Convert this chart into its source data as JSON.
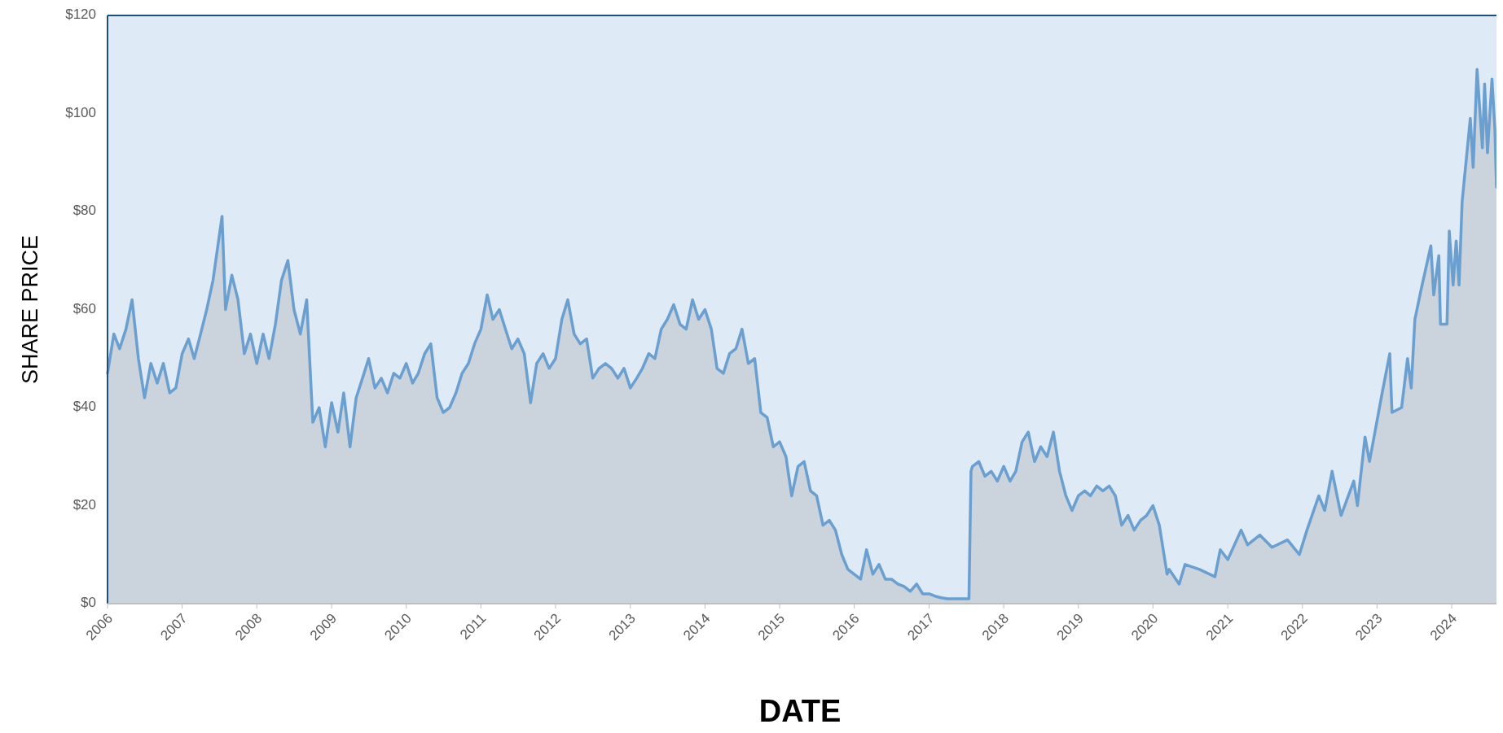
{
  "chart_data": {
    "type": "area",
    "xlabel": "DATE",
    "ylabel": "SHARE PRICE",
    "xlim": [
      "2006-01-01",
      "2024-08-07"
    ],
    "xticks": [
      "2006",
      "2007",
      "2008",
      "2009",
      "2010",
      "2011",
      "2012",
      "2013",
      "2014",
      "2015",
      "2016",
      "2017",
      "2018",
      "2019",
      "2020",
      "2021",
      "2022",
      "2023",
      "2024"
    ],
    "ylim": [
      0,
      120
    ],
    "yticks": [
      {
        "value": 0,
        "label": "$0"
      },
      {
        "value": 20,
        "label": "$20"
      },
      {
        "value": 40,
        "label": "$40"
      },
      {
        "value": 60,
        "label": "$60"
      },
      {
        "value": 80,
        "label": "$80"
      },
      {
        "value": 100,
        "label": "$100"
      },
      {
        "value": 120,
        "label": "$120"
      }
    ],
    "x": [
      "2006-01-01",
      "2006-02",
      "2006-03",
      "2006-04",
      "2006-05",
      "2006-06",
      "2006-07",
      "2006-08",
      "2006-09",
      "2006-10",
      "2006-11",
      "2006-12",
      "2007-01",
      "2007-02",
      "2007-03",
      "2007-04",
      "2007-05",
      "2007-06",
      "2007-07-15",
      "2007-08",
      "2007-09",
      "2007-10",
      "2007-11",
      "2007-12",
      "2008-01",
      "2008-02",
      "2008-03",
      "2008-04",
      "2008-05",
      "2008-06",
      "2008-07",
      "2008-08",
      "2008-09",
      "2008-10",
      "2008-11",
      "2008-12",
      "2009-01",
      "2009-02",
      "2009-03",
      "2009-04",
      "2009-05",
      "2009-06",
      "2009-07",
      "2009-08",
      "2009-09",
      "2009-10",
      "2009-11",
      "2009-12",
      "2010-01",
      "2010-02",
      "2010-03",
      "2010-04",
      "2010-05",
      "2010-06",
      "2010-07",
      "2010-08",
      "2010-09",
      "2010-10",
      "2010-11",
      "2010-12",
      "2011-01",
      "2011-02",
      "2011-03",
      "2011-04",
      "2011-05",
      "2011-06",
      "2011-07",
      "2011-08",
      "2011-09",
      "2011-10",
      "2011-11",
      "2011-12",
      "2012-01",
      "2012-02",
      "2012-03",
      "2012-04",
      "2012-05",
      "2012-06",
      "2012-07",
      "2012-08",
      "2012-09",
      "2012-10",
      "2012-11",
      "2012-12",
      "2013-01",
      "2013-02",
      "2013-03",
      "2013-04",
      "2013-05",
      "2013-06",
      "2013-07",
      "2013-08",
      "2013-09",
      "2013-10",
      "2013-11",
      "2013-12",
      "2014-01",
      "2014-02",
      "2014-03",
      "2014-04",
      "2014-05",
      "2014-06",
      "2014-07",
      "2014-08",
      "2014-09",
      "2014-10",
      "2014-11",
      "2014-12",
      "2015-01",
      "2015-02",
      "2015-03",
      "2015-04",
      "2015-05",
      "2015-06",
      "2015-07",
      "2015-08",
      "2015-09",
      "2015-10",
      "2015-11",
      "2015-12",
      "2016-01",
      "2016-02",
      "2016-03",
      "2016-04",
      "2016-05",
      "2016-06",
      "2016-07",
      "2016-08",
      "2016-09",
      "2016-10",
      "2016-11",
      "2016-12",
      "2017-01",
      "2017-02",
      "2017-03",
      "2017-04",
      "2017-05",
      "2017-06",
      "2017-07-15",
      "2017-07-25",
      "2017-08",
      "2017-09",
      "2017-10",
      "2017-11",
      "2017-12",
      "2018-01",
      "2018-02",
      "2018-03",
      "2018-04",
      "2018-05",
      "2018-06",
      "2018-07",
      "2018-08",
      "2018-09",
      "2018-10",
      "2018-11",
      "2018-12",
      "2019-01",
      "2019-02",
      "2019-03",
      "2019-04",
      "2019-05",
      "2019-06",
      "2019-07",
      "2019-08",
      "2019-09",
      "2019-10",
      "2019-11",
      "2019-12",
      "2020-01",
      "2020-02",
      "2020-03-10",
      "2020-03-20",
      "2020-05-08",
      "2020-06-06",
      "2020-08-15",
      "2020-10-30",
      "2020-11-25",
      "2021-01-01",
      "2021-03-07",
      "2021-04-08",
      "2021-06-07",
      "2021-08-05",
      "2021-10-20",
      "2021-12-17",
      "2022-01-23",
      "2022-03-22",
      "2022-04-20",
      "2022-05-26",
      "2022-07-09",
      "2022-09-09",
      "2022-09-27",
      "2022-11-03",
      "2022-11-25",
      "2023-01-26",
      "2023-03-04",
      "2023-03-15",
      "2023-05-01",
      "2023-05-30",
      "2023-06-17",
      "2023-07-05",
      "2023-08-04",
      "2023-09-21",
      "2023-10-05",
      "2023-10-30",
      "2023-11-07",
      "2023-12-09",
      "2023-12-20",
      "2024-01-08",
      "2024-01-23",
      "2024-02-06",
      "2024-02-21",
      "2024-04-01",
      "2024-04-15",
      "2024-05-04",
      "2024-05-30",
      "2024-06-10",
      "2024-06-24",
      "2024-07-16",
      "2024-07-30",
      "2024-08-07"
    ],
    "series": [
      {
        "color": "#6a9fd0",
        "values": [
          47,
          55,
          52,
          56,
          62,
          50,
          42,
          49,
          45,
          49,
          43,
          44,
          51,
          54,
          50,
          55,
          60,
          66,
          79,
          60,
          67,
          62,
          51,
          55,
          49,
          55,
          50,
          57,
          66,
          70,
          60,
          55,
          62,
          37,
          40,
          32,
          41,
          35,
          43,
          32,
          42,
          46,
          50,
          44,
          46,
          43,
          47,
          46,
          49,
          45,
          47,
          51,
          53,
          42,
          39,
          40,
          43,
          47,
          49,
          53,
          56,
          63,
          58,
          60,
          56,
          52,
          54,
          51,
          41,
          49,
          51,
          48,
          50,
          58,
          62,
          55,
          53,
          54,
          46,
          48,
          49,
          48,
          46,
          48,
          44,
          46,
          48,
          51,
          50,
          56,
          58,
          61,
          57,
          56,
          62,
          58,
          60,
          56,
          48,
          47,
          51,
          52,
          56,
          49,
          50,
          39,
          38,
          32,
          33,
          30,
          22,
          28,
          29,
          23,
          22,
          16,
          17,
          15,
          10,
          7,
          6,
          5,
          11,
          6,
          8,
          5,
          5,
          4,
          3.5,
          2.5,
          4,
          2,
          2,
          1.5,
          1.2,
          1,
          1,
          1,
          1,
          27,
          28,
          29,
          26,
          27,
          25,
          28,
          25,
          27,
          33,
          35,
          29,
          32,
          30,
          35,
          27,
          22,
          19,
          22,
          23,
          22,
          24,
          23,
          24,
          22,
          16,
          18,
          15,
          17,
          18,
          20,
          16,
          6,
          7,
          4,
          8,
          7,
          5.5,
          11,
          9,
          15,
          12,
          14,
          11.5,
          13,
          10,
          15,
          22,
          19,
          27,
          18,
          25,
          20,
          34,
          29,
          43,
          51,
          39,
          40,
          50,
          44,
          58,
          64,
          73,
          63,
          71,
          57,
          57,
          76,
          65,
          74,
          65,
          82,
          99,
          89,
          109,
          93,
          106,
          92,
          107,
          97,
          85
        ]
      }
    ]
  }
}
